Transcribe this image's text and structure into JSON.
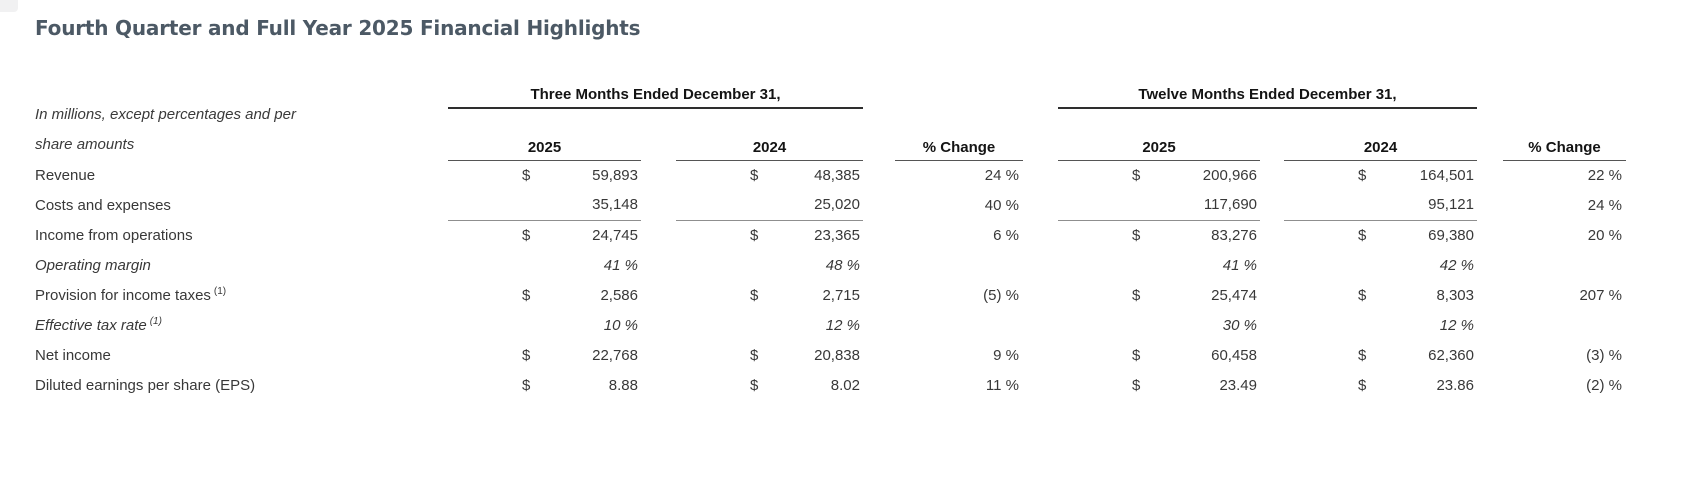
{
  "title": "Fourth Quarter and Full Year 2025 Financial Highlights",
  "note": {
    "line1": "In millions, except percentages and per",
    "line2": "share amounts"
  },
  "sections": {
    "three_months": "Three Months Ended December 31,",
    "twelve_months": "Twelve Months Ended December 31,"
  },
  "headers": {
    "year_current": "2025",
    "year_prior": "2024",
    "pct_change": "% Change"
  },
  "rows": [
    {
      "label": "Revenue",
      "sup": "",
      "italic": false,
      "rule_below": false,
      "c": [
        {
          "d": "$",
          "v": "59,893"
        },
        {
          "d": "$",
          "v": "48,385"
        },
        {
          "p": "24 %"
        },
        {
          "d": "$",
          "v": "200,966"
        },
        {
          "d": "$",
          "v": "164,501"
        },
        {
          "p": "22 %"
        }
      ]
    },
    {
      "label": "Costs and expenses",
      "sup": "",
      "italic": false,
      "rule_below": true,
      "c": [
        {
          "d": "",
          "v": "35,148"
        },
        {
          "d": "",
          "v": "25,020"
        },
        {
          "p": "40 %"
        },
        {
          "d": "",
          "v": "117,690"
        },
        {
          "d": "",
          "v": "95,121"
        },
        {
          "p": "24 %"
        }
      ]
    },
    {
      "label": "Income from operations",
      "sup": "",
      "italic": false,
      "rule_below": false,
      "c": [
        {
          "d": "$",
          "v": "24,745"
        },
        {
          "d": "$",
          "v": "23,365"
        },
        {
          "p": "6 %"
        },
        {
          "d": "$",
          "v": "83,276"
        },
        {
          "d": "$",
          "v": "69,380"
        },
        {
          "p": "20 %"
        }
      ]
    },
    {
      "label": "Operating margin",
      "sup": "",
      "italic": true,
      "rule_below": false,
      "c": [
        {
          "d": "",
          "v": "41 %"
        },
        {
          "d": "",
          "v": "48 %"
        },
        {
          "p": ""
        },
        {
          "d": "",
          "v": "41 %"
        },
        {
          "d": "",
          "v": "42 %"
        },
        {
          "p": ""
        }
      ]
    },
    {
      "label": "Provision for income taxes",
      "sup": "(1)",
      "italic": false,
      "rule_below": false,
      "c": [
        {
          "d": "$",
          "v": "2,586"
        },
        {
          "d": "$",
          "v": "2,715"
        },
        {
          "p": "(5) %"
        },
        {
          "d": "$",
          "v": "25,474"
        },
        {
          "d": "$",
          "v": "8,303"
        },
        {
          "p": "207 %"
        }
      ]
    },
    {
      "label": "Effective tax rate",
      "sup": "(1)",
      "italic": true,
      "rule_below": false,
      "c": [
        {
          "d": "",
          "v": "10 %"
        },
        {
          "d": "",
          "v": "12 %"
        },
        {
          "p": ""
        },
        {
          "d": "",
          "v": "30 %"
        },
        {
          "d": "",
          "v": "12 %"
        },
        {
          "p": ""
        }
      ]
    },
    {
      "label": "Net income",
      "sup": "",
      "italic": false,
      "rule_below": false,
      "c": [
        {
          "d": "$",
          "v": "22,768"
        },
        {
          "d": "$",
          "v": "20,838"
        },
        {
          "p": "9 %"
        },
        {
          "d": "$",
          "v": "60,458"
        },
        {
          "d": "$",
          "v": "62,360"
        },
        {
          "p": "(3) %"
        }
      ]
    },
    {
      "label": "Diluted earnings per share (EPS)",
      "sup": "",
      "italic": false,
      "rule_below": false,
      "c": [
        {
          "d": "$",
          "v": "8.88"
        },
        {
          "d": "$",
          "v": "8.02"
        },
        {
          "p": "11 %"
        },
        {
          "d": "$",
          "v": "23.49"
        },
        {
          "d": "$",
          "v": "23.86"
        },
        {
          "p": "(2) %"
        }
      ]
    }
  ]
}
